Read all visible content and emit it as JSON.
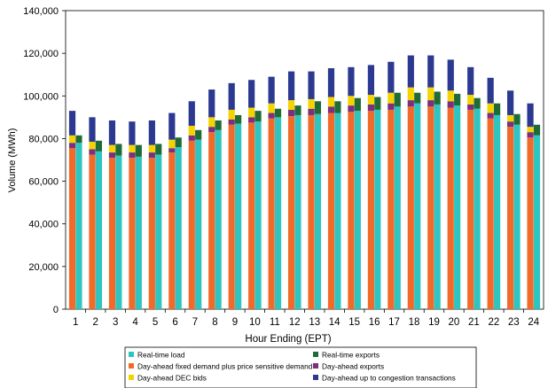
{
  "chart_data": {
    "type": "bar",
    "xlabel": "Hour Ending (EPT)",
    "ylabel": "Volume (MWh)",
    "ylim": [
      0,
      140000
    ],
    "ytick_step": 20000,
    "yticks": [
      "0",
      "20,000",
      "40,000",
      "60,000",
      "80,000",
      "100,000",
      "120,000",
      "140,000"
    ],
    "grid": false,
    "legend_position": "bottom",
    "categories": [
      "1",
      "2",
      "3",
      "4",
      "5",
      "6",
      "7",
      "8",
      "9",
      "10",
      "11",
      "12",
      "13",
      "14",
      "15",
      "16",
      "17",
      "18",
      "19",
      "20",
      "21",
      "22",
      "23",
      "24"
    ],
    "series": [
      {
        "name": "Real-time load",
        "stack": "real-time",
        "color": "#2ec4c0",
        "values": [
          78000,
          74000,
          72000,
          71500,
          72500,
          76000,
          79500,
          84000,
          87000,
          88000,
          90000,
          91000,
          91500,
          92000,
          93000,
          93500,
          95000,
          96500,
          96000,
          95500,
          94000,
          91000,
          86500,
          81500
        ]
      },
      {
        "name": "Real-time exports",
        "stack": "real-time",
        "color": "#1e6b38",
        "values": [
          3500,
          5000,
          5500,
          5500,
          5000,
          4500,
          4500,
          4500,
          4000,
          5000,
          4000,
          4500,
          6000,
          5500,
          6000,
          6000,
          6500,
          5000,
          6000,
          5500,
          5000,
          5500,
          5000,
          5000
        ]
      },
      {
        "name": "Day-ahead fixed demand plus price sensitive demand",
        "stack": "day-ahead",
        "color": "#f26a2a",
        "values": [
          75500,
          72500,
          71000,
          71000,
          71000,
          73500,
          79000,
          83000,
          86500,
          87500,
          89500,
          90500,
          91000,
          92000,
          92500,
          93000,
          93500,
          95000,
          95000,
          94500,
          93500,
          89500,
          85500,
          80500
        ]
      },
      {
        "name": "Day-ahead exports",
        "stack": "day-ahead",
        "color": "#7a2f7f",
        "values": [
          2500,
          2500,
          2500,
          2500,
          2500,
          2000,
          2500,
          2500,
          2500,
          2500,
          2500,
          3000,
          3000,
          3000,
          3000,
          3000,
          3000,
          3000,
          3000,
          3000,
          2500,
          2500,
          2500,
          2500
        ]
      },
      {
        "name": "Day-ahead DEC bids",
        "stack": "day-ahead",
        "color": "#f5d300",
        "values": [
          3500,
          3500,
          3500,
          3500,
          3500,
          4000,
          4500,
          4500,
          4500,
          4500,
          4500,
          4500,
          4500,
          4500,
          4500,
          4500,
          5000,
          6000,
          6000,
          5000,
          4500,
          4500,
          3000,
          2500
        ]
      },
      {
        "name": "Day-ahead up to congestion transactions",
        "stack": "day-ahead",
        "color": "#2b3990",
        "values": [
          11500,
          11500,
          11500,
          11000,
          11500,
          12500,
          11500,
          13000,
          12500,
          13000,
          12500,
          13500,
          13000,
          13500,
          13500,
          14000,
          14500,
          15000,
          15000,
          14500,
          13000,
          12000,
          11500,
          11000
        ]
      }
    ]
  }
}
